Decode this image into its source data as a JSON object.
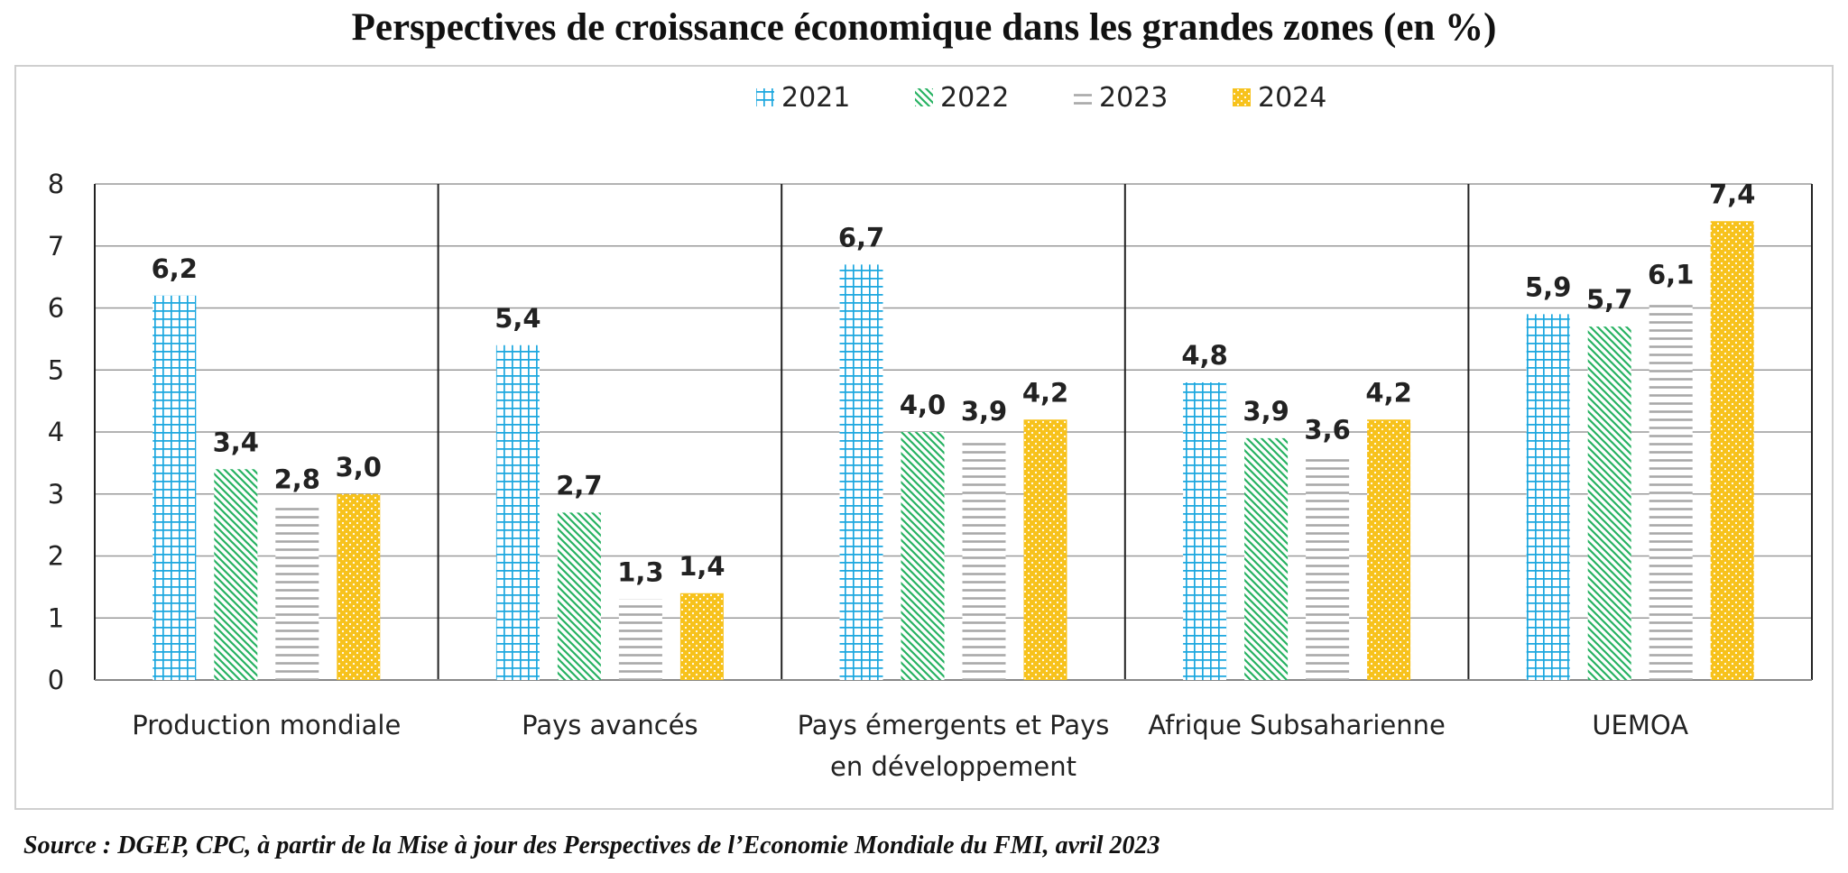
{
  "title": "Perspectives de croissance économique dans les grandes zones (en %)",
  "source": "Source : DGEP, CPC, à partir de la Mise à jour des Perspectives de l’Economie Mondiale du FMI, avril 2023",
  "chart_data": {
    "type": "bar",
    "title": "Perspectives de croissance économique dans les grandes zones (en %)",
    "categories": [
      [
        "Production mondiale"
      ],
      [
        "Pays avancés"
      ],
      [
        "Pays émergents et Pays",
        "en développement"
      ],
      [
        "Afrique Subsaharienne"
      ],
      [
        "UEMOA"
      ]
    ],
    "series": [
      {
        "name": "2021",
        "pattern": "grid",
        "color": "#1ba7df",
        "values": [
          6.2,
          5.4,
          6.7,
          4.8,
          5.9
        ],
        "labels": [
          "6,2",
          "5,4",
          "6,7",
          "4,8",
          "5,9"
        ]
      },
      {
        "name": "2022",
        "pattern": "diagonal",
        "color": "#27b262",
        "values": [
          3.4,
          2.7,
          4.0,
          3.9,
          5.7
        ],
        "labels": [
          "3,4",
          "2,7",
          "4,0",
          "3,9",
          "5,7"
        ]
      },
      {
        "name": "2023",
        "pattern": "horizontal",
        "color": "#a8a8a8",
        "values": [
          2.8,
          1.3,
          3.9,
          3.6,
          6.1
        ],
        "labels": [
          "2,8",
          "1,3",
          "3,9",
          "3,6",
          "6,1"
        ]
      },
      {
        "name": "2024",
        "pattern": "dots",
        "color": "#f7c21c",
        "values": [
          3.0,
          1.4,
          4.2,
          4.2,
          7.4
        ],
        "labels": [
          "3,0",
          "1,4",
          "4,2",
          "4,2",
          "7,4"
        ]
      }
    ],
    "ylim": [
      0,
      8
    ],
    "yticks": [
      "0",
      "1",
      "2",
      "3",
      "4",
      "5",
      "6",
      "7",
      "8"
    ],
    "grid": true,
    "legend": "top-center"
  }
}
